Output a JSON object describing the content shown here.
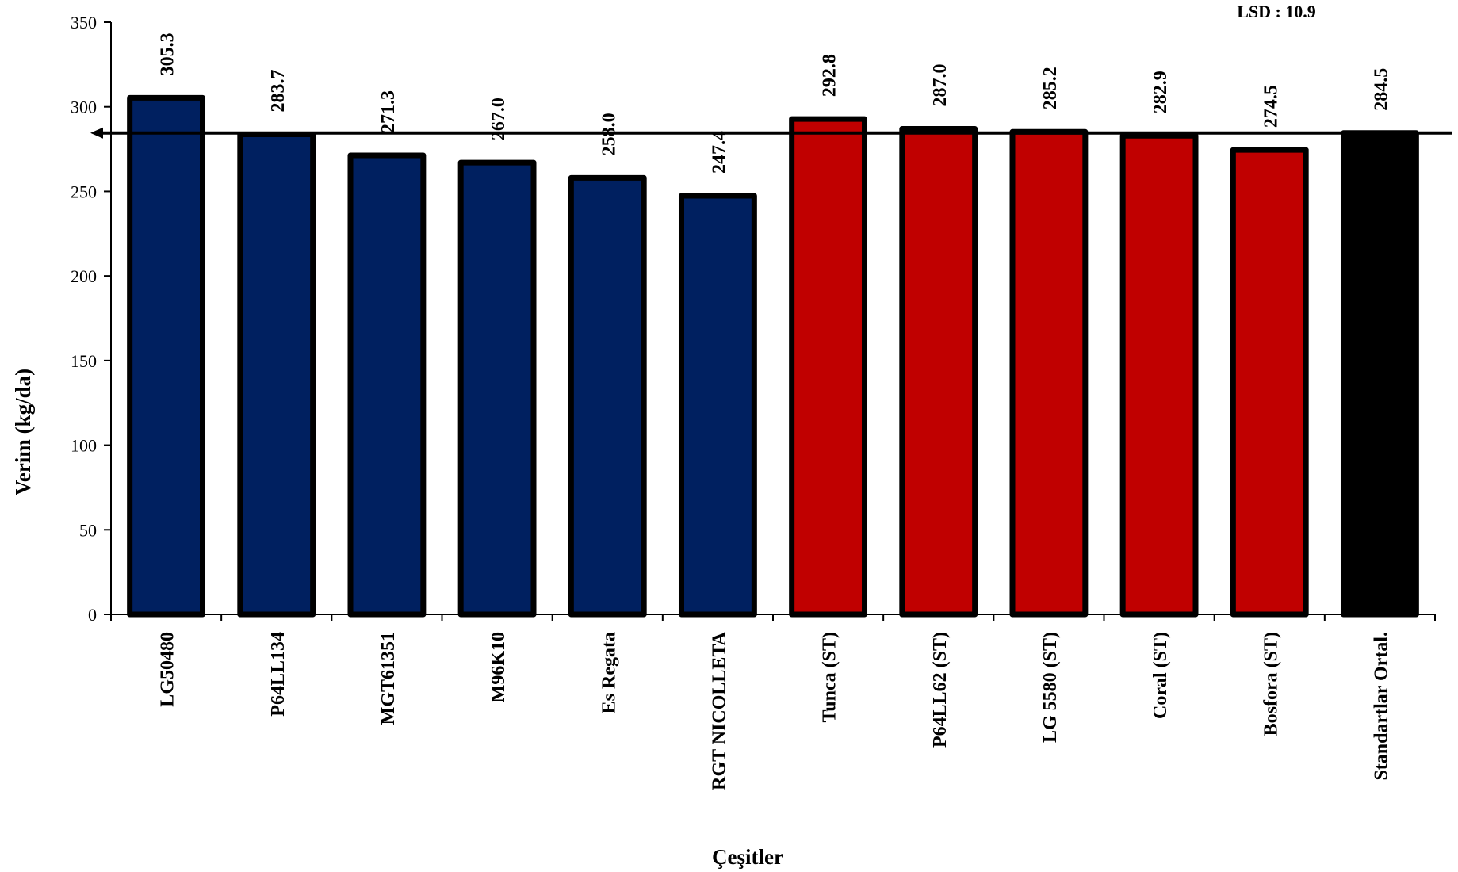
{
  "chart_data": {
    "type": "bar",
    "categories": [
      "LG50480",
      "P64LL134",
      "MGT61351",
      "M96K10",
      "Es Regata",
      "RGT NICOLLETA",
      "Tunca (ST)",
      "P64LL62 (ST)",
      "LG 5580 (ST)",
      "Coral (ST)",
      "Bosfora (ST)",
      "Standartlar Ortal."
    ],
    "values": [
      305.3,
      283.7,
      271.3,
      267.0,
      258.0,
      247.4,
      292.8,
      287.0,
      285.2,
      282.9,
      274.5,
      284.5
    ],
    "value_labels": [
      "305.3",
      "283.7",
      "271.3",
      "267.0",
      "258.0",
      "247.4",
      "292.8",
      "287.0",
      "285.2",
      "282.9",
      "274.5",
      "284.5"
    ],
    "bar_colors": [
      "#002060",
      "#002060",
      "#002060",
      "#002060",
      "#002060",
      "#002060",
      "#C00000",
      "#C00000",
      "#C00000",
      "#C00000",
      "#C00000",
      "#000000"
    ],
    "xlabel": "Çeşitler",
    "ylabel": "Verim (kg/da)",
    "ylim": [
      0,
      350
    ],
    "yticks": [
      0,
      50,
      100,
      150,
      200,
      250,
      300,
      350
    ],
    "reference_line": {
      "value": 284.5
    },
    "annotation": "LSD : 10.9",
    "grid": false
  }
}
